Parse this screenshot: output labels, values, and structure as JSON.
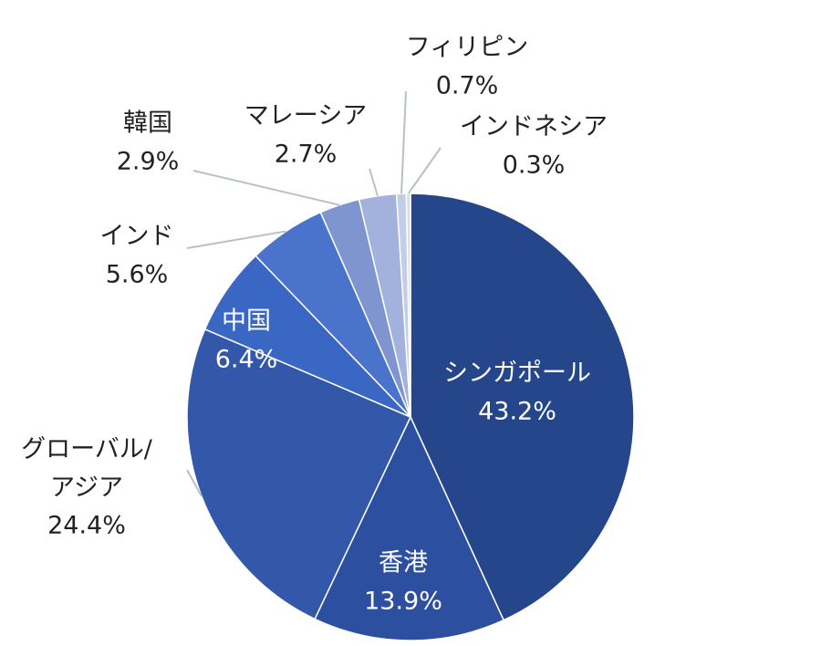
{
  "chart_data": {
    "type": "pie",
    "categories": [
      "シンガポール",
      "香港",
      "グローバル/アジア",
      "中国",
      "インド",
      "韓国",
      "マレーシア",
      "フィリピン",
      "インドネシア"
    ],
    "values": [
      43.2,
      13.9,
      24.4,
      6.4,
      5.6,
      2.9,
      2.7,
      0.7,
      0.3
    ],
    "value_labels": [
      "43.2%",
      "13.9%",
      "24.4%",
      "6.4%",
      "5.6%",
      "2.9%",
      "2.7%",
      "0.7%",
      "0.3%"
    ],
    "colors": [
      "#26468c",
      "#2d4f9f",
      "#3358a9",
      "#3a66c4",
      "#4a74cc",
      "#7f95d0",
      "#a3b2dc",
      "#c3cce8",
      "#d7ddef"
    ]
  }
}
